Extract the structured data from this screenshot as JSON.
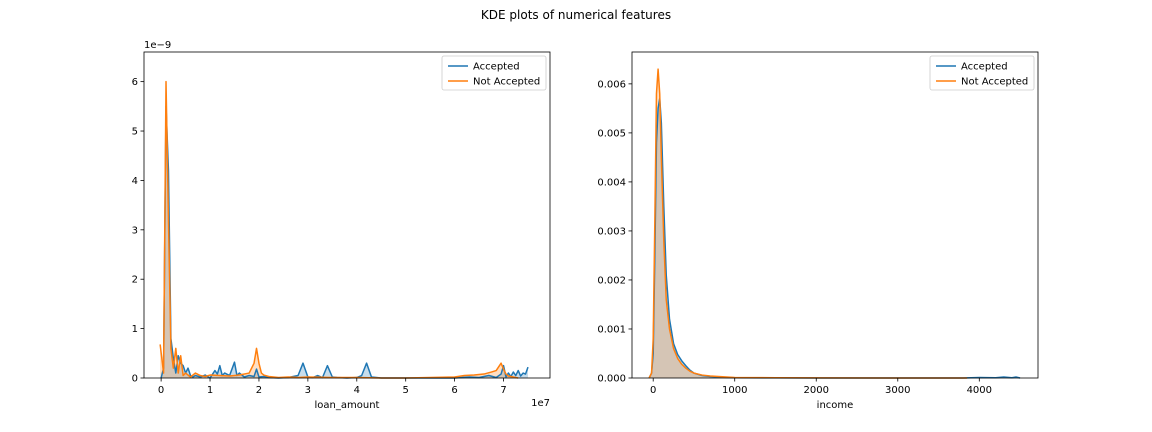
{
  "suptitle": "KDE plots of numerical features",
  "colors": {
    "accepted": "#1f77b4",
    "not_accepted": "#ff7f0e",
    "fill_overlap": "#d2bfaa"
  },
  "chart_data": [
    {
      "type": "line",
      "name": "loan_amount",
      "xlabel": "loan_amount",
      "ylabel": "",
      "x_offset_text": "1e7",
      "y_offset_text": "1e−9",
      "xlim": [
        -0.35,
        7.95
      ],
      "ylim": [
        0,
        6.6
      ],
      "xticks": [
        0,
        1,
        2,
        3,
        4,
        5,
        6,
        7
      ],
      "xtick_labels": [
        "0",
        "1",
        "2",
        "3",
        "4",
        "5",
        "6",
        "7"
      ],
      "yticks": [
        0,
        1,
        2,
        3,
        4,
        5,
        6
      ],
      "ytick_labels": [
        "0",
        "1",
        "2",
        "3",
        "4",
        "5",
        "6"
      ],
      "legend": {
        "position": "top-right",
        "entries": [
          "Accepted",
          "Not Accepted"
        ]
      },
      "series": [
        {
          "name": "Accepted",
          "x": [
            0.0,
            0.05,
            0.1,
            0.15,
            0.2,
            0.25,
            0.3,
            0.35,
            0.4,
            0.45,
            0.5,
            0.55,
            0.6,
            0.65,
            0.7,
            0.8,
            0.9,
            1.0,
            1.1,
            1.15,
            1.2,
            1.25,
            1.3,
            1.4,
            1.5,
            1.55,
            1.6,
            1.7,
            1.8,
            1.9,
            1.95,
            2.0,
            2.1,
            2.2,
            2.4,
            2.6,
            2.8,
            2.9,
            3.0,
            3.1,
            3.2,
            3.3,
            3.4,
            3.5,
            3.6,
            3.8,
            4.0,
            4.1,
            4.2,
            4.3,
            4.5,
            5.0,
            5.5,
            6.0,
            6.3,
            6.5,
            6.7,
            6.85,
            6.95,
            7.0,
            7.05,
            7.1,
            7.15,
            7.2,
            7.25,
            7.3,
            7.35,
            7.4,
            7.45,
            7.5
          ],
          "y": [
            0.0,
            0.2,
            5.5,
            4.2,
            0.8,
            0.4,
            0.1,
            0.45,
            0.3,
            0.25,
            0.1,
            0.2,
            0.05,
            0.02,
            0.05,
            0.02,
            0.06,
            0.0,
            0.15,
            0.08,
            0.25,
            0.05,
            0.1,
            0.05,
            0.32,
            0.05,
            0.1,
            0.02,
            0.05,
            0.03,
            0.18,
            0.02,
            0.03,
            0.01,
            0.0,
            0.01,
            0.05,
            0.3,
            0.02,
            0.01,
            0.05,
            0.01,
            0.25,
            0.02,
            0.01,
            0.0,
            0.01,
            0.05,
            0.3,
            0.02,
            0.0,
            0.0,
            0.0,
            0.0,
            0.02,
            0.01,
            0.05,
            0.01,
            0.08,
            0.25,
            0.02,
            0.1,
            0.03,
            0.12,
            0.05,
            0.15,
            0.04,
            0.1,
            0.08,
            0.22
          ]
        },
        {
          "name": "Not Accepted",
          "x": [
            -0.02,
            0.05,
            0.1,
            0.15,
            0.2,
            0.25,
            0.3,
            0.35,
            0.4,
            0.45,
            0.5,
            0.6,
            0.7,
            0.8,
            0.9,
            1.0,
            1.2,
            1.4,
            1.6,
            1.8,
            1.9,
            1.95,
            2.0,
            2.05,
            2.1,
            2.2,
            2.4,
            2.6,
            2.8,
            3.0,
            3.5,
            4.0,
            4.5,
            5.0,
            5.5,
            6.0,
            6.2,
            6.4,
            6.6,
            6.75,
            6.85,
            6.95,
            7.0,
            7.05,
            7.1,
            7.2,
            7.3
          ],
          "y": [
            0.68,
            0.1,
            6.0,
            3.2,
            0.6,
            0.2,
            0.6,
            0.1,
            0.45,
            0.05,
            0.1,
            0.02,
            0.1,
            0.05,
            0.03,
            0.06,
            0.05,
            0.04,
            0.06,
            0.1,
            0.3,
            0.6,
            0.3,
            0.1,
            0.06,
            0.03,
            0.01,
            0.02,
            0.01,
            0.02,
            0.01,
            0.01,
            0.0,
            0.0,
            0.01,
            0.02,
            0.05,
            0.06,
            0.08,
            0.12,
            0.15,
            0.3,
            0.18,
            0.08,
            0.04,
            0.02,
            0.0
          ]
        }
      ]
    },
    {
      "type": "line",
      "name": "income",
      "xlabel": "income",
      "ylabel": "",
      "xlim": [
        -260,
        4720
      ],
      "ylim": [
        0,
        0.00665
      ],
      "xticks": [
        0,
        1000,
        2000,
        3000,
        4000
      ],
      "xtick_labels": [
        "0",
        "1000",
        "2000",
        "3000",
        "4000"
      ],
      "yticks": [
        0,
        0.001,
        0.002,
        0.003,
        0.004,
        0.005,
        0.006
      ],
      "ytick_labels": [
        "0.000",
        "0.001",
        "0.002",
        "0.003",
        "0.004",
        "0.005",
        "0.006"
      ],
      "legend": {
        "position": "top-right",
        "entries": [
          "Accepted",
          "Not Accepted"
        ]
      },
      "series": [
        {
          "name": "Accepted",
          "x": [
            -50,
            -20,
            0,
            20,
            40,
            60,
            80,
            100,
            130,
            160,
            200,
            250,
            300,
            350,
            400,
            450,
            500,
            600,
            700,
            800,
            900,
            1000,
            1500,
            2000,
            3000,
            3800,
            4000,
            4200,
            4300,
            4400,
            4450,
            4500
          ],
          "y": [
            0.0,
            0.0001,
            0.0005,
            0.0025,
            0.0048,
            0.0055,
            0.0057,
            0.0052,
            0.0035,
            0.0021,
            0.0012,
            0.0007,
            0.00048,
            0.00035,
            0.00025,
            0.00016,
            0.0001,
            5e-05,
            3e-05,
            2e-05,
            1e-05,
            5e-06,
            2e-06,
            1e-06,
            0.0,
            0.0,
            1e-05,
            5e-06,
            2e-05,
            5e-06,
            2e-05,
            0.0
          ]
        },
        {
          "name": "Not Accepted",
          "x": [
            -50,
            -20,
            0,
            20,
            40,
            60,
            80,
            100,
            130,
            160,
            200,
            250,
            300,
            350,
            400,
            450,
            500,
            600,
            700,
            800,
            900,
            1000,
            1200,
            1500,
            2000,
            3000,
            3850
          ],
          "y": [
            0.0,
            0.0001,
            0.0008,
            0.0032,
            0.0058,
            0.0063,
            0.0058,
            0.0045,
            0.0028,
            0.0016,
            0.001,
            0.0006,
            0.0004,
            0.00028,
            0.0002,
            0.00014,
            0.0001,
            6e-05,
            4e-05,
            3e-05,
            2e-05,
            1e-05,
            8e-06,
            5e-06,
            2e-06,
            1e-06,
            0.0
          ]
        }
      ]
    }
  ]
}
